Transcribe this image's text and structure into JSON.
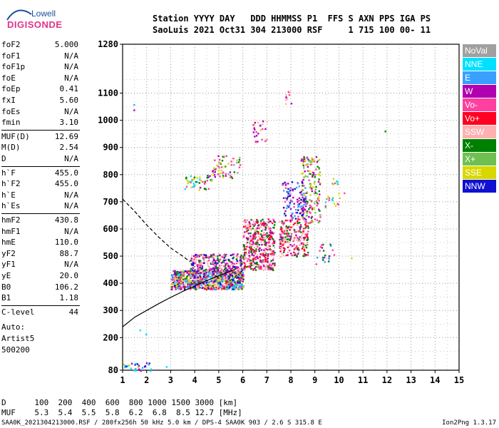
{
  "logo": {
    "line1": "Lowell",
    "line2": "DIGISONDE"
  },
  "header": {
    "line1": "Station YYYY DAY   DDD HHMMSS P1  FFS S AXN PPS IGA PS",
    "line2": "SaoLuis 2021 Oct31 304 213000 RSF     1 715 100 00- 11"
  },
  "params": [
    {
      "name": "foF2",
      "value": "5.000"
    },
    {
      "name": "foF1",
      "value": "N/A"
    },
    {
      "name": "foF1p",
      "value": "N/A"
    },
    {
      "name": "foE",
      "value": "N/A"
    },
    {
      "name": "foEp",
      "value": "0.41"
    },
    {
      "name": "fxI",
      "value": "5.60"
    },
    {
      "name": "foEs",
      "value": "N/A"
    },
    {
      "name": "fmin",
      "value": "3.10"
    },
    {
      "name": "MUF(D)",
      "value": "12.69"
    },
    {
      "name": "M(D)",
      "value": "2.54"
    },
    {
      "name": "D",
      "value": "N/A"
    },
    {
      "name": "h`F",
      "value": "455.0"
    },
    {
      "name": "h`F2",
      "value": "455.0"
    },
    {
      "name": "h`E",
      "value": "N/A"
    },
    {
      "name": "h`Es",
      "value": "N/A"
    },
    {
      "name": "hmF2",
      "value": "430.8"
    },
    {
      "name": "hmF1",
      "value": "N/A"
    },
    {
      "name": "hmE",
      "value": "110.0"
    },
    {
      "name": "yF2",
      "value": "88.7"
    },
    {
      "name": "yF1",
      "value": "N/A"
    },
    {
      "name": "yE",
      "value": "20.0"
    },
    {
      "name": "B0",
      "value": "106.2"
    },
    {
      "name": "B1",
      "value": "1.18"
    },
    {
      "name": "C-level",
      "value": "44"
    }
  ],
  "auto": {
    "line1": "Auto:",
    "line2": "Artist5",
    "line3": "500200"
  },
  "legend": [
    {
      "label": "NoVal",
      "color": "#a0a0a0"
    },
    {
      "label": "NNE",
      "color": "#00e0ff"
    },
    {
      "label": "E",
      "color": "#3aa0ff"
    },
    {
      "label": "W",
      "color": "#b000b0"
    },
    {
      "label": "Vo-",
      "color": "#ff40a0"
    },
    {
      "label": "Vo+",
      "color": "#ff0020"
    },
    {
      "label": "SSW",
      "color": "#ffb0b0"
    },
    {
      "label": "X-",
      "color": "#008000"
    },
    {
      "label": "X+",
      "color": "#70c050"
    },
    {
      "label": "SSE",
      "color": "#d8d800"
    },
    {
      "label": "NNW",
      "color": "#1010d0"
    }
  ],
  "chart_data": {
    "type": "scatter",
    "xlim": [
      1,
      15
    ],
    "ylim": [
      80,
      1280
    ],
    "xticks": [
      1,
      2,
      3,
      4,
      5,
      6,
      7,
      8,
      9,
      10,
      11,
      12,
      13,
      14,
      15
    ],
    "yticks": [
      80,
      200,
      300,
      400,
      500,
      600,
      700,
      800,
      900,
      1000,
      1100,
      1280
    ],
    "grid": true,
    "clusters": [
      {
        "x": [
          3.0,
          6.0
        ],
        "y": [
          380,
          450
        ],
        "n": 900,
        "mix": [
          "NNW",
          "W",
          "Vo-",
          "X-",
          "SSE",
          "NNE",
          "Vo+",
          "E",
          "SSW"
        ]
      },
      {
        "x": [
          3.8,
          6.0
        ],
        "y": [
          440,
          510
        ],
        "n": 300,
        "mix": [
          "W",
          "Vo-",
          "NNW",
          "X-",
          "SSW"
        ]
      },
      {
        "x": [
          6.0,
          7.3
        ],
        "y": [
          450,
          640
        ],
        "n": 420,
        "mix": [
          "Vo+",
          "Vo-",
          "SSW",
          "W",
          "X-"
        ]
      },
      {
        "x": [
          7.5,
          8.7
        ],
        "y": [
          500,
          640
        ],
        "n": 220,
        "mix": [
          "Vo+",
          "Vo-",
          "W",
          "SSW",
          "X-"
        ]
      },
      {
        "x": [
          8.4,
          9.2
        ],
        "y": [
          620,
          870
        ],
        "n": 170,
        "mix": [
          "W",
          "Vo-",
          "X-",
          "SSE",
          "X+"
        ]
      },
      {
        "x": [
          7.6,
          8.6
        ],
        "y": [
          640,
          780
        ],
        "n": 110,
        "mix": [
          "NNW",
          "W",
          "Vo-",
          "E"
        ]
      },
      {
        "x": [
          3.5,
          4.7
        ],
        "y": [
          745,
          800
        ],
        "n": 45,
        "mix": [
          "SSE",
          "Vo-",
          "W",
          "X-",
          "NNE"
        ]
      },
      {
        "x": [
          4.7,
          5.9
        ],
        "y": [
          790,
          880
        ],
        "n": 60,
        "mix": [
          "SSE",
          "Vo-",
          "W",
          "X-",
          "NoVal"
        ]
      },
      {
        "x": [
          6.4,
          7.0
        ],
        "y": [
          920,
          1000
        ],
        "n": 28,
        "mix": [
          "SSE",
          "Vo-",
          "W",
          "SSW"
        ]
      },
      {
        "x": [
          7.7,
          8.0
        ],
        "y": [
          1060,
          1110
        ],
        "n": 10,
        "mix": [
          "Vo-",
          "SSW",
          "W"
        ]
      },
      {
        "x": [
          9.4,
          10.2
        ],
        "y": [
          680,
          790
        ],
        "n": 25,
        "mix": [
          "SSE",
          "Vo-",
          "NNE",
          "X+"
        ]
      },
      {
        "x": [
          9.0,
          9.8
        ],
        "y": [
          470,
          560
        ],
        "n": 22,
        "mix": [
          "X-",
          "E",
          "Vo-",
          "W"
        ]
      },
      {
        "x": [
          1.0,
          2.2
        ],
        "y": [
          80,
          110
        ],
        "n": 30,
        "mix": [
          "NNW",
          "SSE",
          "E",
          "NNE",
          "W"
        ]
      }
    ],
    "points": [
      {
        "x": 1.45,
        "y": 1040,
        "series": "W"
      },
      {
        "x": 1.45,
        "y": 1060,
        "series": "E"
      },
      {
        "x": 11.9,
        "y": 962,
        "series": "X-"
      },
      {
        "x": 1.7,
        "y": 230,
        "series": "NNE"
      },
      {
        "x": 1.95,
        "y": 215,
        "series": "NNE"
      },
      {
        "x": 2.8,
        "y": 95,
        "series": "NNE"
      },
      {
        "x": 10.5,
        "y": 495,
        "series": "SSE"
      }
    ],
    "curves": [
      {
        "style": "solid",
        "x": [
          1.0,
          1.5,
          2.0,
          2.5,
          3.0,
          3.5,
          4.0,
          4.5,
          5.0,
          5.5,
          5.7
        ],
        "y": [
          240,
          275,
          300,
          325,
          348,
          370,
          390,
          410,
          428,
          445,
          452
        ]
      },
      {
        "style": "dashed",
        "x": [
          1.0,
          1.5,
          2.0,
          2.5,
          3.0,
          3.5,
          3.8
        ],
        "y": [
          710,
          665,
          615,
          570,
          530,
          500,
          480
        ]
      }
    ]
  },
  "footer": {
    "d_line": "D      100  200  400  600  800 1000 1500 3000 [km]",
    "muf_line": "MUF    5.3  5.4  5.5  5.8  6.2  6.8  8.5 12.7 [MHz]",
    "info": "SAA0K_2021304213000.RSF / 280fx256h 50 kHz 5.0 km / DPS-4 SAA0K 903 / 2.6 S 315.8 E",
    "version": "Ion2Png 1.3.17"
  }
}
